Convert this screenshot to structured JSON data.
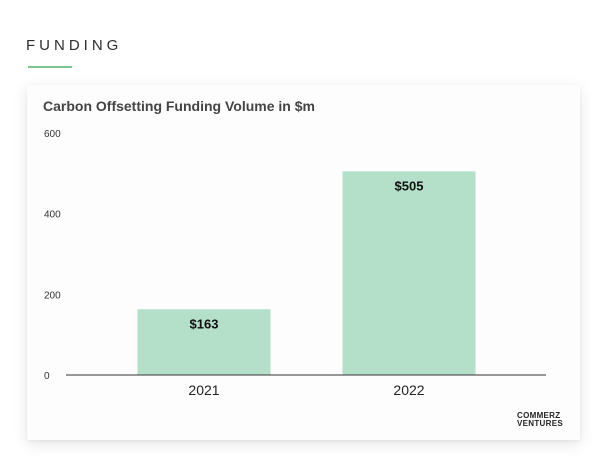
{
  "section": {
    "title": "FUNDING"
  },
  "logo": {
    "line1": "COMMERZ",
    "line2": "VENTURES"
  },
  "colors": {
    "bar": "#b4e0c9",
    "accent": "#7cc58e",
    "axis": "#333333",
    "text": "#222222"
  },
  "chart_data": {
    "type": "bar",
    "title": "Carbon Offsetting Funding Volume in $m",
    "categories": [
      "2021",
      "2022"
    ],
    "values": [
      163,
      505
    ],
    "data_labels": [
      "$163",
      "$505"
    ],
    "xlabel": "",
    "ylabel": "",
    "ylim": [
      0,
      600
    ],
    "yticks": [
      0,
      200,
      400,
      600
    ],
    "ytick_labels": [
      "0",
      "200",
      "400",
      "600"
    ],
    "grid": false,
    "legend": "none"
  }
}
